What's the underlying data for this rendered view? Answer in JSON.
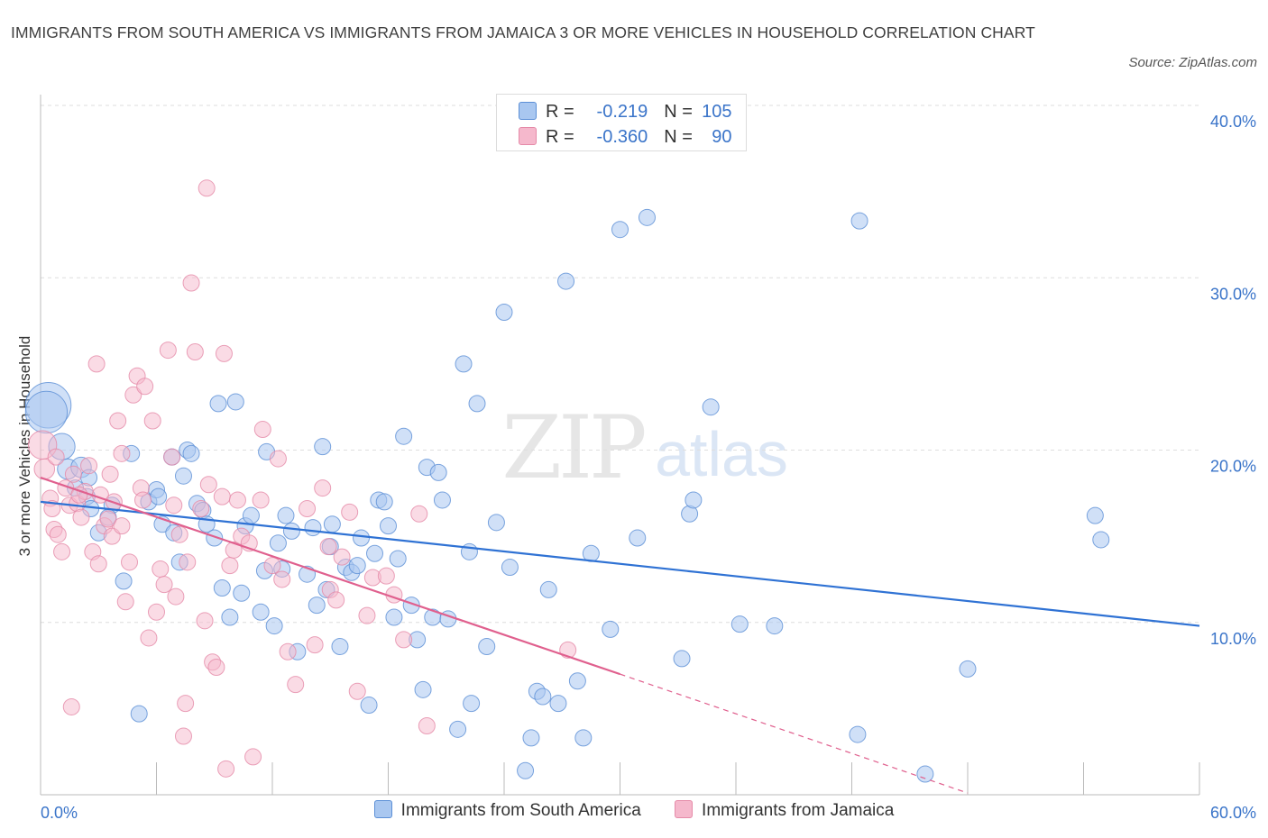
{
  "title": "IMMIGRANTS FROM SOUTH AMERICA VS IMMIGRANTS FROM JAMAICA 3 OR MORE VEHICLES IN HOUSEHOLD CORRELATION CHART",
  "source": "Source: ZipAtlas.com",
  "watermark": {
    "zip": "ZIP",
    "atlas": "atlas"
  },
  "legend_top": {
    "r_label": "R =",
    "n_label": "N =",
    "rows": [
      {
        "r": "-0.219",
        "n": "105"
      },
      {
        "r": "-0.360",
        "n": "90"
      }
    ]
  },
  "colors": {
    "blue_fill": "#a9c7f0",
    "blue_stroke": "#5b8fd6",
    "blue_line": "#2f72d4",
    "pink_fill": "#f5b8cc",
    "pink_stroke": "#e58aa8",
    "pink_line": "#e0608e",
    "axis_text": "#3a74c9",
    "grid": "#dedede"
  },
  "chart_data": {
    "type": "scatter",
    "title": "IMMIGRANTS FROM SOUTH AMERICA VS IMMIGRANTS FROM JAMAICA 3 OR MORE VEHICLES IN HOUSEHOLD CORRELATION CHART",
    "xlabel": "",
    "ylabel": "3 or more Vehicles in Household",
    "xlim": [
      0,
      60
    ],
    "ylim": [
      0,
      40
    ],
    "x_tick_labels": [
      "0.0%",
      "60.0%"
    ],
    "y_tick_labels": [
      "10.0%",
      "20.0%",
      "30.0%",
      "40.0%"
    ],
    "y_ticks": [
      10,
      20,
      30,
      40
    ],
    "grid": true,
    "legend_position": "bottom",
    "series": [
      {
        "name": "Immigrants from South America",
        "R": -0.219,
        "N": 105,
        "trend": {
          "x": [
            0,
            60
          ],
          "y": [
            17.0,
            9.8
          ]
        },
        "points": [
          [
            0.4,
            22.6,
            2.2
          ],
          [
            0.3,
            22.2,
            2.0
          ],
          [
            1.1,
            20.2,
            1.2
          ],
          [
            1.4,
            18.9,
            0.9
          ],
          [
            2.1,
            19.0,
            0.9
          ],
          [
            2.5,
            18.4,
            0.7
          ],
          [
            1.8,
            17.8,
            0.7
          ],
          [
            2.4,
            17.3,
            0.7
          ],
          [
            2.6,
            16.6,
            0.7
          ],
          [
            3.7,
            16.8,
            0.7
          ],
          [
            3.5,
            16.1,
            0.7
          ],
          [
            4.7,
            19.8,
            0.7
          ],
          [
            5.6,
            17.0,
            0.7
          ],
          [
            6.0,
            17.7,
            0.7
          ],
          [
            6.1,
            17.3,
            0.7
          ],
          [
            6.3,
            15.7,
            0.7
          ],
          [
            6.8,
            19.6,
            0.7
          ],
          [
            6.9,
            15.2,
            0.7
          ],
          [
            7.4,
            18.5,
            0.7
          ],
          [
            7.6,
            20.0,
            0.7
          ],
          [
            7.8,
            19.8,
            0.7
          ],
          [
            8.1,
            16.9,
            0.7
          ],
          [
            8.4,
            16.5,
            0.7
          ],
          [
            8.6,
            15.7,
            0.7
          ],
          [
            9.0,
            14.9,
            0.7
          ],
          [
            9.2,
            22.7,
            0.7
          ],
          [
            10.1,
            22.8,
            0.7
          ],
          [
            10.4,
            11.7,
            0.7
          ],
          [
            9.4,
            12.0,
            0.7
          ],
          [
            10.6,
            15.6,
            0.7
          ],
          [
            10.9,
            16.2,
            0.7
          ],
          [
            11.4,
            10.6,
            0.7
          ],
          [
            11.6,
            13.0,
            0.7
          ],
          [
            11.7,
            19.9,
            0.7
          ],
          [
            12.3,
            14.6,
            0.7
          ],
          [
            12.5,
            13.1,
            0.7
          ],
          [
            12.7,
            16.2,
            0.7
          ],
          [
            13.0,
            15.3,
            0.7
          ],
          [
            13.3,
            8.3,
            0.7
          ],
          [
            13.8,
            12.8,
            0.7
          ],
          [
            14.1,
            15.5,
            0.7
          ],
          [
            14.3,
            11.0,
            0.7
          ],
          [
            14.6,
            20.2,
            0.7
          ],
          [
            15.0,
            14.4,
            0.7
          ],
          [
            15.1,
            15.7,
            0.7
          ],
          [
            15.5,
            8.6,
            0.7
          ],
          [
            15.8,
            13.2,
            0.7
          ],
          [
            16.1,
            12.9,
            0.7
          ],
          [
            16.4,
            13.3,
            0.7
          ],
          [
            16.6,
            14.9,
            0.7
          ],
          [
            17.0,
            5.2,
            0.7
          ],
          [
            17.3,
            14.0,
            0.7
          ],
          [
            17.5,
            17.1,
            0.7
          ],
          [
            17.8,
            17.0,
            0.7
          ],
          [
            18.0,
            15.6,
            0.7
          ],
          [
            18.3,
            10.3,
            0.7
          ],
          [
            18.5,
            13.7,
            0.7
          ],
          [
            18.8,
            20.8,
            0.7
          ],
          [
            19.2,
            11.0,
            0.7
          ],
          [
            19.5,
            9.0,
            0.7
          ],
          [
            20.0,
            19.0,
            0.7
          ],
          [
            20.3,
            10.3,
            0.7
          ],
          [
            20.6,
            18.7,
            0.7
          ],
          [
            20.8,
            17.1,
            0.7
          ],
          [
            21.1,
            10.2,
            0.7
          ],
          [
            21.6,
            3.8,
            0.7
          ],
          [
            21.9,
            25.0,
            0.7
          ],
          [
            22.3,
            5.3,
            0.7
          ],
          [
            22.6,
            22.7,
            0.7
          ],
          [
            23.1,
            8.6,
            0.7
          ],
          [
            23.6,
            15.8,
            0.7
          ],
          [
            24.0,
            28.0,
            0.7
          ],
          [
            24.3,
            13.2,
            0.7
          ],
          [
            25.1,
            1.4,
            0.7
          ],
          [
            25.4,
            3.3,
            0.7
          ],
          [
            25.7,
            6.0,
            0.7
          ],
          [
            26.0,
            5.7,
            0.7
          ],
          [
            26.3,
            11.9,
            0.7
          ],
          [
            26.8,
            5.3,
            0.7
          ],
          [
            27.2,
            29.8,
            0.7
          ],
          [
            27.8,
            6.6,
            0.7
          ],
          [
            28.1,
            3.3,
            0.7
          ],
          [
            28.5,
            14.0,
            0.7
          ],
          [
            29.5,
            9.6,
            0.7
          ],
          [
            30.0,
            32.8,
            0.7
          ],
          [
            30.9,
            14.9,
            0.7
          ],
          [
            31.4,
            33.5,
            0.7
          ],
          [
            33.2,
            7.9,
            0.7
          ],
          [
            33.6,
            16.3,
            0.7
          ],
          [
            33.8,
            17.1,
            0.7
          ],
          [
            34.7,
            22.5,
            0.7
          ],
          [
            36.2,
            9.9,
            0.7
          ],
          [
            38.0,
            9.8,
            0.7
          ],
          [
            42.3,
            3.5,
            0.7
          ],
          [
            42.4,
            33.3,
            0.7
          ],
          [
            45.8,
            1.2,
            0.7
          ],
          [
            48.0,
            7.3,
            0.7
          ],
          [
            54.6,
            16.2,
            0.7
          ],
          [
            54.9,
            14.8,
            0.7
          ],
          [
            9.8,
            10.3,
            0.7
          ],
          [
            12.1,
            9.8,
            0.7
          ],
          [
            19.8,
            6.1,
            0.7
          ],
          [
            7.2,
            13.5,
            0.7
          ],
          [
            5.1,
            4.7,
            0.7
          ],
          [
            4.3,
            12.4,
            0.7
          ],
          [
            14.8,
            11.9,
            0.7
          ],
          [
            3.0,
            15.2,
            0.7
          ],
          [
            22.2,
            14.1,
            0.7
          ]
        ]
      },
      {
        "name": "Immigrants from Jamaica",
        "R": -0.36,
        "N": 90,
        "trend_solid": {
          "x": [
            0,
            30.0
          ],
          "y": [
            18.4,
            7.0
          ]
        },
        "trend_dashed": {
          "x": [
            30.0,
            48.0
          ],
          "y": [
            7.0,
            0.1
          ]
        },
        "points": [
          [
            0.1,
            20.3,
            1.3
          ],
          [
            0.2,
            18.9,
            0.9
          ],
          [
            0.5,
            17.2,
            0.7
          ],
          [
            0.6,
            16.6,
            0.7
          ],
          [
            0.7,
            15.4,
            0.7
          ],
          [
            0.9,
            15.1,
            0.7
          ],
          [
            1.1,
            14.1,
            0.7
          ],
          [
            1.3,
            17.8,
            0.7
          ],
          [
            1.5,
            16.8,
            0.7
          ],
          [
            1.7,
            18.6,
            0.7
          ],
          [
            1.9,
            16.9,
            0.7
          ],
          [
            2.1,
            16.1,
            0.7
          ],
          [
            2.3,
            17.6,
            0.7
          ],
          [
            2.5,
            19.1,
            0.7
          ],
          [
            2.7,
            14.1,
            0.7
          ],
          [
            2.9,
            25.0,
            0.7
          ],
          [
            3.1,
            17.4,
            0.7
          ],
          [
            3.3,
            15.6,
            0.7
          ],
          [
            3.5,
            16.0,
            0.7
          ],
          [
            3.7,
            15.0,
            0.7
          ],
          [
            3.8,
            17.0,
            0.7
          ],
          [
            4.0,
            21.7,
            0.7
          ],
          [
            4.2,
            19.8,
            0.7
          ],
          [
            4.4,
            11.2,
            0.7
          ],
          [
            4.6,
            13.5,
            0.7
          ],
          [
            4.8,
            23.2,
            0.7
          ],
          [
            5.0,
            24.3,
            0.7
          ],
          [
            5.2,
            17.8,
            0.7
          ],
          [
            5.4,
            23.7,
            0.7
          ],
          [
            5.6,
            9.1,
            0.7
          ],
          [
            5.8,
            21.7,
            0.7
          ],
          [
            6.0,
            10.6,
            0.7
          ],
          [
            6.2,
            13.1,
            0.7
          ],
          [
            6.4,
            12.2,
            0.7
          ],
          [
            6.6,
            25.8,
            0.7
          ],
          [
            6.8,
            19.6,
            0.7
          ],
          [
            7.0,
            11.5,
            0.7
          ],
          [
            7.2,
            15.1,
            0.7
          ],
          [
            7.4,
            3.4,
            0.7
          ],
          [
            7.6,
            13.5,
            0.7
          ],
          [
            7.8,
            29.7,
            0.7
          ],
          [
            8.0,
            25.7,
            0.7
          ],
          [
            8.3,
            16.6,
            0.7
          ],
          [
            8.5,
            10.1,
            0.7
          ],
          [
            8.6,
            35.2,
            0.7
          ],
          [
            8.7,
            18.0,
            0.7
          ],
          [
            8.9,
            7.7,
            0.7
          ],
          [
            9.1,
            7.4,
            0.7
          ],
          [
            9.4,
            17.3,
            0.7
          ],
          [
            9.6,
            1.5,
            0.7
          ],
          [
            9.8,
            13.3,
            0.7
          ],
          [
            10.2,
            17.1,
            0.7
          ],
          [
            10.4,
            15.0,
            0.7
          ],
          [
            10.8,
            14.6,
            0.7
          ],
          [
            11.0,
            2.2,
            0.7
          ],
          [
            11.4,
            17.1,
            0.7
          ],
          [
            11.5,
            21.2,
            0.7
          ],
          [
            12.0,
            13.3,
            0.7
          ],
          [
            12.5,
            12.5,
            0.7
          ],
          [
            12.8,
            8.3,
            0.7
          ],
          [
            13.2,
            6.4,
            0.7
          ],
          [
            13.8,
            16.6,
            0.7
          ],
          [
            14.2,
            8.7,
            0.7
          ],
          [
            14.6,
            17.8,
            0.7
          ],
          [
            15.0,
            11.9,
            0.7
          ],
          [
            15.3,
            11.3,
            0.7
          ],
          [
            15.6,
            13.8,
            0.7
          ],
          [
            16.0,
            16.4,
            0.7
          ],
          [
            16.4,
            6.0,
            0.7
          ],
          [
            16.9,
            10.4,
            0.7
          ],
          [
            17.2,
            12.6,
            0.7
          ],
          [
            17.9,
            12.7,
            0.7
          ],
          [
            18.3,
            11.6,
            0.7
          ],
          [
            18.8,
            9.0,
            0.7
          ],
          [
            19.6,
            16.3,
            0.7
          ],
          [
            20.0,
            4.0,
            0.7
          ],
          [
            27.3,
            8.4,
            0.7
          ],
          [
            1.6,
            5.1,
            0.7
          ],
          [
            7.5,
            5.3,
            0.7
          ],
          [
            9.5,
            25.6,
            0.7
          ],
          [
            12.3,
            19.5,
            0.7
          ],
          [
            4.2,
            15.6,
            0.7
          ],
          [
            3.0,
            13.4,
            0.7
          ],
          [
            5.3,
            17.1,
            0.7
          ],
          [
            6.9,
            16.8,
            0.7
          ],
          [
            0.8,
            19.6,
            0.7
          ],
          [
            2.0,
            17.4,
            0.7
          ],
          [
            3.6,
            18.6,
            0.7
          ],
          [
            10.0,
            14.2,
            0.7
          ],
          [
            14.9,
            14.4,
            0.7
          ]
        ]
      }
    ]
  },
  "legend_bottom": {
    "items": [
      {
        "label": "Immigrants from South America"
      },
      {
        "label": "Immigrants from Jamaica"
      }
    ]
  }
}
